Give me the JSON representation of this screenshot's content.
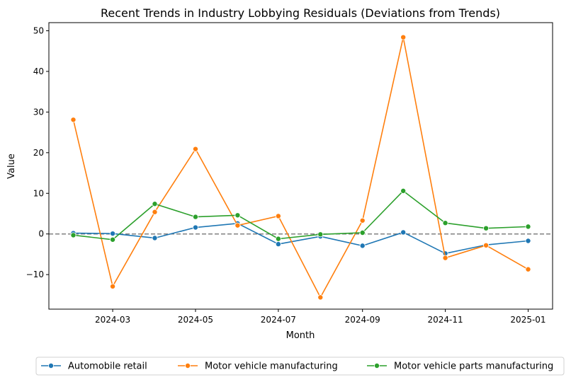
{
  "chart_data": {
    "type": "line",
    "title": "Recent Trends in Industry Lobbying Residuals (Deviations from Trends)",
    "xlabel": "Month",
    "ylabel": "Value",
    "x": [
      "2024-02",
      "2024-03",
      "2024-04",
      "2024-05",
      "2024-06",
      "2024-07",
      "2024-08",
      "2024-09",
      "2024-10",
      "2024-11",
      "2024-12",
      "2025-01"
    ],
    "xticks": [
      "2024-03",
      "2024-05",
      "2024-07",
      "2024-09",
      "2024-11",
      "2025-01"
    ],
    "yticks": [
      -10,
      0,
      10,
      20,
      30,
      40,
      50
    ],
    "xlim": [
      "2024-01-14",
      "2025-01-19"
    ],
    "ylim": [
      -18.5,
      52
    ],
    "reference_line": {
      "y": 0,
      "style": "dashed",
      "color": "#808080"
    },
    "legend_position": "bottom-center",
    "series": [
      {
        "name": "Automobile retail",
        "color": "#1f77b4",
        "values": [
          0.2,
          0.1,
          -1.0,
          1.6,
          2.6,
          -2.5,
          -0.6,
          -2.9,
          0.4,
          -4.8,
          -2.7,
          -1.7
        ]
      },
      {
        "name": "Motor vehicle manufacturing",
        "color": "#ff7f0e",
        "values": [
          28.1,
          -12.9,
          5.4,
          20.9,
          2.1,
          4.4,
          -15.6,
          3.3,
          48.4,
          -5.9,
          -2.8,
          -8.7
        ]
      },
      {
        "name": "Motor vehicle parts manufacturing",
        "color": "#2ca02c",
        "values": [
          -0.3,
          -1.4,
          7.4,
          4.2,
          4.6,
          -1.2,
          -0.1,
          0.3,
          10.6,
          2.7,
          1.4,
          1.8
        ]
      }
    ]
  }
}
